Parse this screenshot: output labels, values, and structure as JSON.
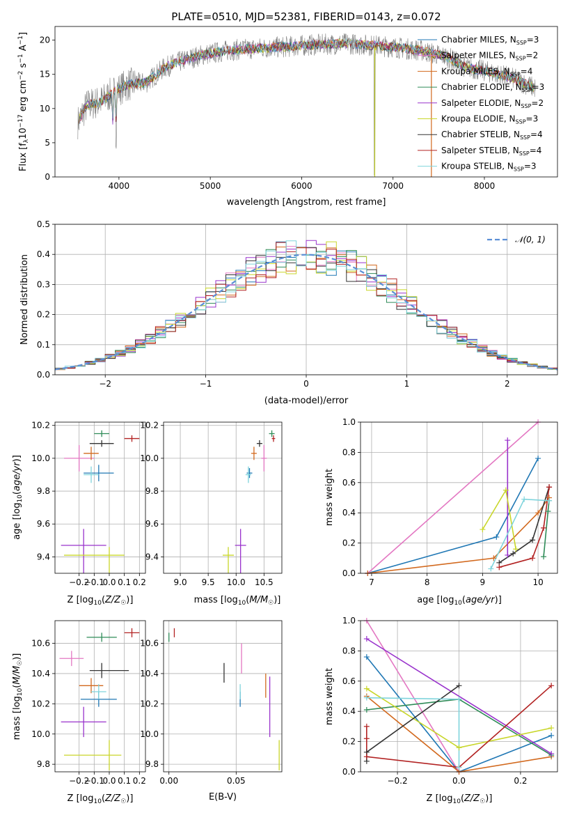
{
  "title": "PLATE=0510, MJD=52381, FIBERID=0143, z=0.072",
  "colors": {
    "chabrier_miles": "#1f77b4",
    "salpeter_miles": "#e377c2",
    "kroupa_miles": "#d2691e",
    "chabrier_elodie": "#2e8b57",
    "salpeter_elodie": "#9932cc",
    "kroupa_elodie": "#c8d629",
    "chabrier_stelib": "#333333",
    "salpeter_stelib": "#b22222",
    "kroupa_stelib": "#7fd4dc",
    "data": "#808080",
    "normal": "#5b8fd6"
  },
  "legend_spec": [
    {
      "label": "Chabrier MILES, N",
      "sub": "SSP",
      "tail": "=3",
      "key": "chabrier_miles"
    },
    {
      "label": "Salpeter MILES, N",
      "sub": "SSP",
      "tail": "=2",
      "key": "salpeter_miles"
    },
    {
      "label": "Kroupa MILES, N",
      "sub": "SSP",
      "tail": "=4",
      "key": "kroupa_miles"
    },
    {
      "label": "Chabrier ELODIE, N",
      "sub": "SSP",
      "tail": "=3",
      "key": "chabrier_elodie"
    },
    {
      "label": "Salpeter ELODIE, N",
      "sub": "SSP",
      "tail": "=2",
      "key": "salpeter_elodie"
    },
    {
      "label": "Kroupa ELODIE, N",
      "sub": "SSP",
      "tail": "=3",
      "key": "kroupa_elodie"
    },
    {
      "label": "Chabrier STELIB, N",
      "sub": "SSP",
      "tail": "=4",
      "key": "chabrier_stelib"
    },
    {
      "label": "Salpeter STELIB, N",
      "sub": "SSP",
      "tail": "=4",
      "key": "salpeter_stelib"
    },
    {
      "label": "Kroupa STELIB, N",
      "sub": "SSP",
      "tail": "=3",
      "key": "kroupa_stelib"
    }
  ],
  "chart_data": [
    {
      "id": "spectrum",
      "type": "line",
      "xlabel": "wavelength [Angstrom, rest frame]",
      "ylabel": "Flux [f",
      "xlim": [
        3300,
        8800
      ],
      "ylim": [
        0,
        22
      ],
      "xticks": [
        4000,
        5000,
        6000,
        7000,
        8000
      ],
      "yticks": [
        0,
        5,
        10,
        15,
        20
      ],
      "continuum": [
        [
          3550,
          8
        ],
        [
          3650,
          10.5
        ],
        [
          3800,
          11
        ],
        [
          3950,
          12.5
        ],
        [
          4100,
          13.5
        ],
        [
          4300,
          13.8
        ],
        [
          4500,
          16
        ],
        [
          4700,
          17
        ],
        [
          4900,
          17.8
        ],
        [
          5200,
          18.5
        ],
        [
          5500,
          18.8
        ],
        [
          5800,
          19
        ],
        [
          6100,
          19.3
        ],
        [
          6500,
          19.5
        ],
        [
          7000,
          19
        ],
        [
          7300,
          18.5
        ],
        [
          7600,
          17.5
        ],
        [
          7800,
          16
        ],
        [
          8000,
          15.5
        ],
        [
          8300,
          14.5
        ],
        [
          8550,
          13
        ]
      ]
    },
    {
      "id": "residuals",
      "type": "histogram",
      "xlabel": "(data-model)/error",
      "ylabel": "Normed distribution",
      "xlim": [
        -2.5,
        2.5
      ],
      "ylim": [
        0,
        0.5
      ],
      "xticks": [
        -2,
        -1,
        0,
        1,
        2
      ],
      "yticks": [
        0.0,
        0.1,
        0.2,
        0.3,
        0.4,
        0.5
      ],
      "bin_width": 0.1,
      "legend": "𝒩(0, 1)"
    },
    {
      "id": "z_age",
      "type": "scatter",
      "xlabel": "Z [log",
      "ylabel": "age  [log",
      "xlim": [
        -0.36,
        0.24
      ],
      "ylim": [
        9.3,
        10.22
      ],
      "xticks": [
        -0.2,
        -0.1,
        0.0,
        0.1,
        0.2
      ],
      "yticks": [
        9.4,
        9.6,
        9.8,
        10.0,
        10.2
      ],
      "points": [
        {
          "key": "chabrier_miles",
          "x": -0.07,
          "y": 9.91,
          "xerr": [
            0.1,
            0.1
          ],
          "yerr": [
            0.05,
            0.05
          ]
        },
        {
          "key": "salpeter_miles",
          "x": -0.2,
          "y": 10.0,
          "xerr": [
            0.1,
            0.1
          ],
          "yerr": [
            0.08,
            0.08
          ]
        },
        {
          "key": "kroupa_miles",
          "x": -0.12,
          "y": 10.03,
          "xerr": [
            0.05,
            0.05
          ],
          "yerr": [
            0.04,
            0.04
          ]
        },
        {
          "key": "chabrier_elodie",
          "x": -0.05,
          "y": 10.15,
          "xerr": [
            0.05,
            0.05
          ],
          "yerr": [
            0.02,
            0.02
          ]
        },
        {
          "key": "salpeter_elodie",
          "x": -0.17,
          "y": 9.47,
          "xerr": [
            0.15,
            0.15
          ],
          "yerr": [
            0.26,
            0.1
          ]
        },
        {
          "key": "kroupa_elodie",
          "x": 0.0,
          "y": 9.41,
          "xerr": [
            0.3,
            0.1
          ],
          "yerr": [
            0.32,
            0.05
          ]
        },
        {
          "key": "chabrier_stelib",
          "x": -0.05,
          "y": 10.09,
          "xerr": [
            0.08,
            0.08
          ],
          "yerr": [
            0.02,
            0.02
          ]
        },
        {
          "key": "salpeter_stelib",
          "x": 0.15,
          "y": 10.12,
          "xerr": [
            0.05,
            0.05
          ],
          "yerr": [
            0.02,
            0.02
          ]
        },
        {
          "key": "kroupa_stelib",
          "x": -0.12,
          "y": 9.9,
          "xerr": [
            0.05,
            0.05
          ],
          "yerr": [
            0.05,
            0.05
          ]
        }
      ]
    },
    {
      "id": "mass_age",
      "type": "scatter",
      "xlabel": "mass [log",
      "ylabel": "",
      "xlim": [
        8.7,
        10.82
      ],
      "ylim": [
        9.3,
        10.22
      ],
      "xticks": [
        9.0,
        9.5,
        10.0,
        10.5
      ],
      "yticks": [
        9.4,
        9.6,
        9.8,
        10.0,
        10.2
      ],
      "points": [
        {
          "key": "chabrier_miles",
          "x": 10.24,
          "y": 9.91,
          "xerr": [
            0.05,
            0.05
          ],
          "yerr": [
            0.03,
            0.03
          ]
        },
        {
          "key": "salpeter_miles",
          "x": 10.5,
          "y": 10.0,
          "xerr": [
            0.05,
            0.05
          ],
          "yerr": [
            0.08,
            0.08
          ]
        },
        {
          "key": "kroupa_miles",
          "x": 10.32,
          "y": 10.03,
          "xerr": [
            0.05,
            0.05
          ],
          "yerr": [
            0.04,
            0.04
          ]
        },
        {
          "key": "chabrier_elodie",
          "x": 10.64,
          "y": 10.15,
          "xerr": [
            0.05,
            0.05
          ],
          "yerr": [
            0.02,
            0.02
          ]
        },
        {
          "key": "salpeter_elodie",
          "x": 10.08,
          "y": 9.47,
          "xerr": [
            0.1,
            0.1
          ],
          "yerr": [
            0.26,
            0.1
          ]
        },
        {
          "key": "kroupa_elodie",
          "x": 9.86,
          "y": 9.41,
          "xerr": [
            0.1,
            0.1
          ],
          "yerr": [
            0.32,
            0.05
          ]
        },
        {
          "key": "chabrier_stelib",
          "x": 10.42,
          "y": 10.09,
          "xerr": [
            0.05,
            0.05
          ],
          "yerr": [
            0.02,
            0.02
          ]
        },
        {
          "key": "salpeter_stelib",
          "x": 10.67,
          "y": 10.12,
          "xerr": [
            0.03,
            0.03
          ],
          "yerr": [
            0.02,
            0.02
          ]
        },
        {
          "key": "kroupa_stelib",
          "x": 10.22,
          "y": 9.9,
          "xerr": [
            0.05,
            0.05
          ],
          "yerr": [
            0.05,
            0.05
          ]
        }
      ]
    },
    {
      "id": "age_weight",
      "type": "line",
      "xlabel": "age  [log",
      "ylabel": "mass weight",
      "xlim": [
        6.8,
        10.35
      ],
      "ylim": [
        0.0,
        1.0
      ],
      "xticks": [
        7,
        8,
        9,
        10
      ],
      "yticks": [
        0.0,
        0.2,
        0.4,
        0.6,
        0.8,
        1.0
      ],
      "series": [
        {
          "key": "chabrier_miles",
          "x": [
            6.93,
            9.25,
            10.0
          ],
          "y": [
            0.0,
            0.24,
            0.76
          ]
        },
        {
          "key": "salpeter_miles",
          "x": [
            6.93,
            10.0
          ],
          "y": [
            0.0,
            1.0
          ]
        },
        {
          "key": "kroupa_miles",
          "x": [
            6.93,
            9.2,
            10.0,
            10.2
          ],
          "y": [
            0.0,
            0.1,
            0.4,
            0.5
          ]
        },
        {
          "key": "chabrier_elodie",
          "x": [
            10.1,
            10.18,
            10.2
          ],
          "y": [
            0.11,
            0.41,
            0.48
          ]
        },
        {
          "key": "salpeter_elodie",
          "x": [
            9.45,
            9.45
          ],
          "y": [
            0.12,
            0.88
          ]
        },
        {
          "key": "kroupa_elodie",
          "x": [
            9.0,
            9.42,
            9.6
          ],
          "y": [
            0.29,
            0.55,
            0.16
          ]
        },
        {
          "key": "chabrier_stelib",
          "x": [
            9.3,
            9.55,
            9.9,
            10.2
          ],
          "y": [
            0.07,
            0.13,
            0.22,
            0.57
          ]
        },
        {
          "key": "salpeter_stelib",
          "x": [
            9.3,
            9.9,
            10.1,
            10.2,
            10.2
          ],
          "y": [
            0.04,
            0.1,
            0.3,
            0.57,
            0.57
          ]
        },
        {
          "key": "kroupa_stelib",
          "x": [
            9.15,
            9.75,
            10.2
          ],
          "y": [
            0.03,
            0.49,
            0.48
          ]
        }
      ]
    },
    {
      "id": "z_mass",
      "type": "scatter",
      "xlabel": "Z [log",
      "ylabel": "mass [log",
      "xlim": [
        -0.36,
        0.24
      ],
      "ylim": [
        9.75,
        10.75
      ],
      "xticks": [
        -0.2,
        -0.1,
        0.0,
        0.1,
        0.2
      ],
      "yticks": [
        9.8,
        10.0,
        10.2,
        10.4,
        10.6
      ],
      "points": [
        {
          "key": "chabrier_miles",
          "x": -0.07,
          "y": 10.23,
          "xerr": [
            0.12,
            0.12
          ],
          "yerr": [
            0.05,
            0.05
          ]
        },
        {
          "key": "salpeter_miles",
          "x": -0.25,
          "y": 10.5,
          "xerr": [
            0.08,
            0.08
          ],
          "yerr": [
            0.05,
            0.05
          ]
        },
        {
          "key": "kroupa_miles",
          "x": -0.12,
          "y": 10.32,
          "xerr": [
            0.08,
            0.08
          ],
          "yerr": [
            0.05,
            0.05
          ]
        },
        {
          "key": "chabrier_elodie",
          "x": -0.05,
          "y": 10.64,
          "xerr": [
            0.1,
            0.1
          ],
          "yerr": [
            0.03,
            0.03
          ]
        },
        {
          "key": "salpeter_elodie",
          "x": -0.17,
          "y": 10.08,
          "xerr": [
            0.15,
            0.15
          ],
          "yerr": [
            0.1,
            0.1
          ]
        },
        {
          "key": "kroupa_elodie",
          "x": 0.0,
          "y": 9.86,
          "xerr": [
            0.3,
            0.08
          ],
          "yerr": [
            0.1,
            0.1
          ]
        },
        {
          "key": "chabrier_stelib",
          "x": -0.05,
          "y": 10.42,
          "xerr": [
            0.08,
            0.18
          ],
          "yerr": [
            0.05,
            0.05
          ]
        },
        {
          "key": "salpeter_stelib",
          "x": 0.15,
          "y": 10.67,
          "xerr": [
            0.05,
            0.05
          ],
          "yerr": [
            0.03,
            0.03
          ]
        },
        {
          "key": "kroupa_stelib",
          "x": -0.07,
          "y": 10.28,
          "xerr": [
            0.05,
            0.05
          ],
          "yerr": [
            0.05,
            0.05
          ]
        }
      ]
    },
    {
      "id": "ebv_mass",
      "type": "scatter",
      "xlabel": "E(B-V)",
      "ylabel": "",
      "xlim": [
        -0.004,
        0.084
      ],
      "ylim": [
        9.75,
        10.75
      ],
      "xticks": [
        0.0,
        0.05
      ],
      "xticklabels": [
        "0.00",
        "0.05"
      ],
      "yticks": [
        9.8,
        10.0,
        10.2,
        10.4,
        10.6
      ],
      "points": [
        {
          "key": "chabrier_miles",
          "x": 0.053,
          "y": 10.23,
          "yerr": [
            0.05,
            0.05
          ]
        },
        {
          "key": "salpeter_miles",
          "x": 0.054,
          "y": 10.5,
          "yerr": [
            0.1,
            0.1
          ]
        },
        {
          "key": "kroupa_miles",
          "x": 0.072,
          "y": 10.32,
          "yerr": [
            0.08,
            0.08
          ]
        },
        {
          "key": "chabrier_elodie",
          "x": 0.0,
          "y": 10.64,
          "yerr": [
            0.03,
            0.03
          ]
        },
        {
          "key": "salpeter_elodie",
          "x": 0.075,
          "y": 10.08,
          "yerr": [
            0.1,
            0.3
          ]
        },
        {
          "key": "kroupa_elodie",
          "x": 0.082,
          "y": 9.86,
          "yerr": [
            0.1,
            0.1
          ]
        },
        {
          "key": "chabrier_stelib",
          "x": 0.041,
          "y": 10.42,
          "yerr": [
            0.08,
            0.05
          ]
        },
        {
          "key": "salpeter_stelib",
          "x": 0.004,
          "y": 10.67,
          "yerr": [
            0.03,
            0.03
          ]
        },
        {
          "key": "kroupa_stelib",
          "x": 0.053,
          "y": 10.28,
          "yerr": [
            0.05,
            0.05
          ]
        }
      ]
    },
    {
      "id": "z_weight",
      "type": "line",
      "xlabel": "Z [log",
      "ylabel": "mass weight",
      "xlim": [
        -0.32,
        0.32
      ],
      "ylim": [
        0.0,
        1.0
      ],
      "xticks": [
        -0.2,
        0.0,
        0.2
      ],
      "yticks": [
        0.0,
        0.2,
        0.4,
        0.6,
        0.8,
        1.0
      ],
      "series": [
        {
          "key": "chabrier_miles",
          "x": [
            -0.3,
            0.0,
            0.3
          ],
          "y": [
            0.76,
            0.0,
            0.24
          ]
        },
        {
          "key": "salpeter_miles",
          "x": [
            -0.3,
            0.0
          ],
          "y": [
            1.0,
            0.0
          ]
        },
        {
          "key": "kroupa_miles",
          "x": [
            -0.3,
            0.0,
            0.3
          ],
          "y": [
            0.5,
            0.0,
            0.1
          ]
        },
        {
          "key": "chabrier_elodie",
          "x": [
            -0.3,
            0.0,
            0.3
          ],
          "y": [
            0.41,
            0.48,
            0.11
          ]
        },
        {
          "key": "salpeter_elodie",
          "x": [
            -0.3,
            0.3
          ],
          "y": [
            0.88,
            0.12
          ]
        },
        {
          "key": "kroupa_elodie",
          "x": [
            -0.3,
            0.0,
            0.3
          ],
          "y": [
            0.55,
            0.16,
            0.29
          ]
        },
        {
          "key": "chabrier_stelib",
          "x": [
            -0.3,
            -0.3,
            0.0
          ],
          "y": [
            0.07,
            0.13,
            0.57
          ]
        },
        {
          "key": "salpeter_stelib",
          "x": [
            -0.3,
            -0.3,
            -0.3,
            0.0,
            0.3
          ],
          "y": [
            0.3,
            0.22,
            0.1,
            0.03,
            0.57
          ]
        },
        {
          "key": "kroupa_stelib",
          "x": [
            -0.3,
            0.0,
            0.0
          ],
          "y": [
            0.49,
            0.48,
            0.03
          ]
        }
      ]
    }
  ]
}
